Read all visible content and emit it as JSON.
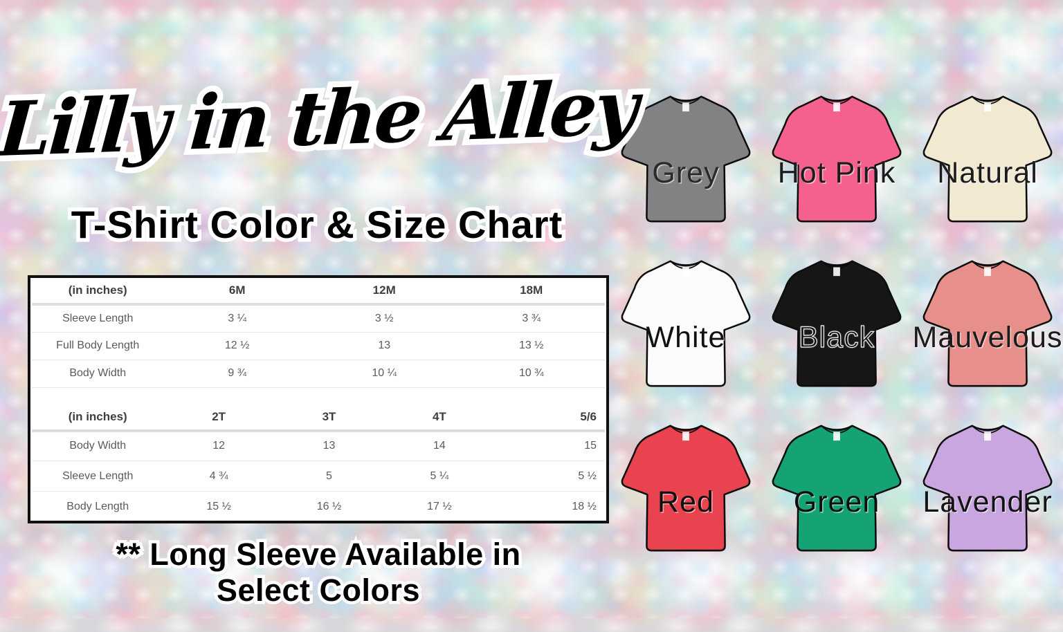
{
  "header": {
    "logo_text": "Lilly in the Alley",
    "subtitle": "T-Shirt Color & Size Chart"
  },
  "size_chart": {
    "infant": {
      "unit_label": "(in inches)",
      "columns": [
        "6M",
        "12M",
        "18M"
      ],
      "rows": [
        {
          "label": "Sleeve Length",
          "values": [
            "3 ¼",
            "3 ½",
            "3 ¾"
          ]
        },
        {
          "label": "Full Body Length",
          "values": [
            "12 ½",
            "13",
            "13 ½"
          ]
        },
        {
          "label": "Body Width",
          "values": [
            "9 ¾",
            "10 ¼",
            "10 ¾"
          ]
        }
      ]
    },
    "toddler": {
      "unit_label": "(in inches)",
      "columns": [
        "2T",
        "3T",
        "4T",
        "5/6"
      ],
      "rows": [
        {
          "label": "Body Width",
          "values": [
            "12",
            "13",
            "14",
            "15"
          ]
        },
        {
          "label": "Sleeve Length",
          "values": [
            "4 ¾",
            "5",
            "5 ¼",
            "5 ½"
          ]
        },
        {
          "label": "Body Length",
          "values": [
            "15 ½",
            "16 ½",
            "17 ½",
            "18 ½"
          ]
        }
      ]
    }
  },
  "footnote": {
    "line1": "** Long Sleeve Available in",
    "line2": "Select Colors"
  },
  "shirt_colors": [
    {
      "name": "Grey",
      "hex": "#828285",
      "label_color": "#2a2a2a",
      "outline_label": false
    },
    {
      "name": "Hot Pink",
      "hex": "#f4618f",
      "label_color": "#1c1c1c",
      "outline_label": false
    },
    {
      "name": "Natural",
      "hex": "#f1e9d2",
      "label_color": "#1c1c1c",
      "outline_label": false
    },
    {
      "name": "White",
      "hex": "#fcfcfc",
      "label_color": "#111111",
      "outline_label": false
    },
    {
      "name": "Black",
      "hex": "#161616",
      "label_color": "#141414",
      "outline_label": true
    },
    {
      "name": "Mauvelous",
      "hex": "#e78f8a",
      "label_color": "#1c1c1c",
      "outline_label": false
    },
    {
      "name": "Red",
      "hex": "#e8434f",
      "label_color": "#101010",
      "outline_label": false
    },
    {
      "name": "Green",
      "hex": "#15a376",
      "label_color": "#0f0f0f",
      "outline_label": false
    },
    {
      "name": "Lavender",
      "hex": "#c9a6e0",
      "label_color": "#141414",
      "outline_label": false
    }
  ]
}
